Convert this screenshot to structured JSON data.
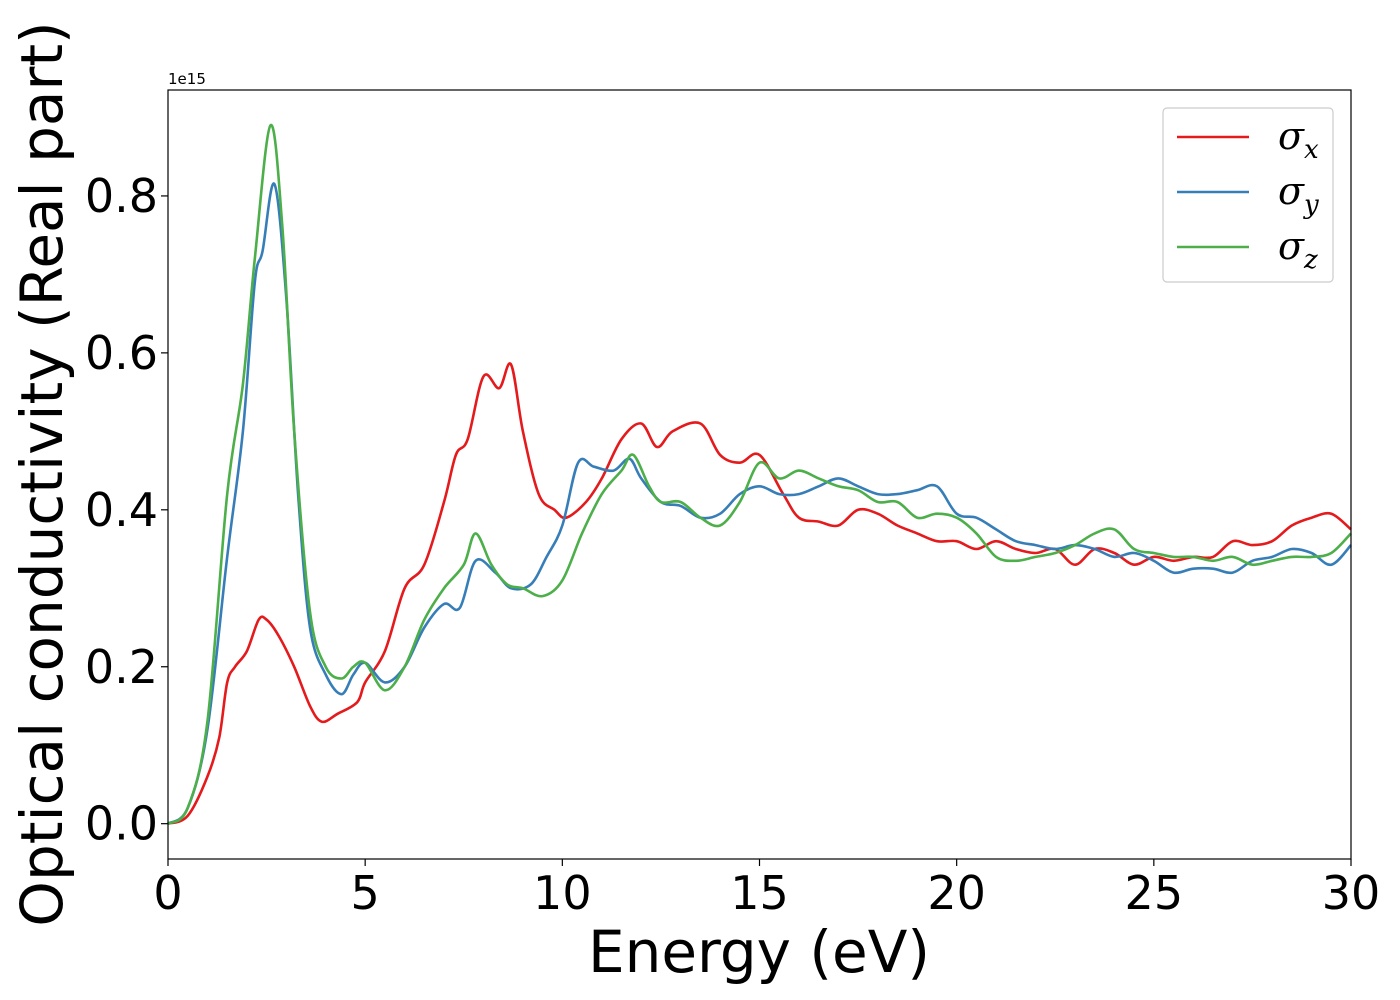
{
  "chart_data": {
    "type": "line",
    "xlabel": "Energy (eV)",
    "ylabel": "Optical conductivity (Real part)",
    "y_offset_text": "1e15",
    "xlim": [
      0,
      30
    ],
    "ylim": [
      -0.045,
      0.935
    ],
    "x_ticks": [
      0,
      5,
      10,
      15,
      20,
      25,
      30
    ],
    "x_tick_labels": [
      "0",
      "5",
      "10",
      "15",
      "20",
      "25",
      "30"
    ],
    "y_ticks": [
      0.0,
      0.2,
      0.4,
      0.6,
      0.8
    ],
    "y_tick_labels": [
      "0.0",
      "0.2",
      "0.4",
      "0.6",
      "0.8"
    ],
    "grid": false,
    "legend_position": "top-right",
    "series": [
      {
        "name": "σx",
        "legend_symbol": "σ",
        "legend_subscript": "x",
        "color": "#e41a1c",
        "points": [
          [
            0,
            0
          ],
          [
            0.5,
            0.01
          ],
          [
            1.0,
            0.06
          ],
          [
            1.3,
            0.11
          ],
          [
            1.5,
            0.18
          ],
          [
            1.7,
            0.2
          ],
          [
            2.0,
            0.22
          ],
          [
            2.3,
            0.26
          ],
          [
            2.5,
            0.26
          ],
          [
            2.8,
            0.24
          ],
          [
            3.2,
            0.2
          ],
          [
            3.6,
            0.15
          ],
          [
            3.9,
            0.13
          ],
          [
            4.3,
            0.14
          ],
          [
            4.8,
            0.155
          ],
          [
            5.0,
            0.18
          ],
          [
            5.5,
            0.22
          ],
          [
            6.0,
            0.3
          ],
          [
            6.5,
            0.33
          ],
          [
            7.0,
            0.41
          ],
          [
            7.3,
            0.47
          ],
          [
            7.6,
            0.49
          ],
          [
            8.0,
            0.57
          ],
          [
            8.4,
            0.555
          ],
          [
            8.7,
            0.585
          ],
          [
            9.0,
            0.5
          ],
          [
            9.4,
            0.42
          ],
          [
            9.8,
            0.4
          ],
          [
            10.1,
            0.39
          ],
          [
            10.6,
            0.41
          ],
          [
            11.0,
            0.44
          ],
          [
            11.5,
            0.49
          ],
          [
            12.0,
            0.51
          ],
          [
            12.4,
            0.48
          ],
          [
            12.8,
            0.5
          ],
          [
            13.5,
            0.51
          ],
          [
            14.0,
            0.47
          ],
          [
            14.5,
            0.46
          ],
          [
            15.0,
            0.47
          ],
          [
            15.6,
            0.42
          ],
          [
            16.0,
            0.39
          ],
          [
            16.5,
            0.385
          ],
          [
            17.0,
            0.38
          ],
          [
            17.5,
            0.4
          ],
          [
            18.0,
            0.395
          ],
          [
            18.5,
            0.38
          ],
          [
            19.0,
            0.37
          ],
          [
            19.5,
            0.36
          ],
          [
            20.0,
            0.36
          ],
          [
            20.5,
            0.35
          ],
          [
            21.0,
            0.36
          ],
          [
            21.5,
            0.35
          ],
          [
            22.0,
            0.345
          ],
          [
            22.5,
            0.35
          ],
          [
            23.0,
            0.33
          ],
          [
            23.5,
            0.35
          ],
          [
            24.0,
            0.345
          ],
          [
            24.5,
            0.33
          ],
          [
            25.0,
            0.34
          ],
          [
            25.5,
            0.335
          ],
          [
            26.0,
            0.34
          ],
          [
            26.5,
            0.34
          ],
          [
            27.0,
            0.36
          ],
          [
            27.5,
            0.355
          ],
          [
            28.0,
            0.36
          ],
          [
            28.5,
            0.38
          ],
          [
            29.0,
            0.39
          ],
          [
            29.5,
            0.395
          ],
          [
            30.0,
            0.375
          ]
        ]
      },
      {
        "name": "σy",
        "legend_symbol": "σ",
        "legend_subscript": "y",
        "color": "#377eb8",
        "points": [
          [
            0,
            0
          ],
          [
            0.5,
            0.02
          ],
          [
            1.0,
            0.12
          ],
          [
            1.5,
            0.34
          ],
          [
            1.9,
            0.5
          ],
          [
            2.2,
            0.69
          ],
          [
            2.4,
            0.73
          ],
          [
            2.7,
            0.815
          ],
          [
            3.0,
            0.67
          ],
          [
            3.3,
            0.42
          ],
          [
            3.6,
            0.25
          ],
          [
            4.0,
            0.19
          ],
          [
            4.4,
            0.165
          ],
          [
            4.7,
            0.19
          ],
          [
            5.0,
            0.205
          ],
          [
            5.5,
            0.18
          ],
          [
            6.0,
            0.2
          ],
          [
            6.5,
            0.25
          ],
          [
            7.0,
            0.28
          ],
          [
            7.4,
            0.275
          ],
          [
            7.8,
            0.335
          ],
          [
            8.3,
            0.32
          ],
          [
            8.7,
            0.3
          ],
          [
            9.2,
            0.305
          ],
          [
            9.6,
            0.34
          ],
          [
            10.0,
            0.38
          ],
          [
            10.4,
            0.46
          ],
          [
            10.8,
            0.455
          ],
          [
            11.3,
            0.45
          ],
          [
            11.7,
            0.465
          ],
          [
            12.0,
            0.44
          ],
          [
            12.5,
            0.41
          ],
          [
            13.0,
            0.405
          ],
          [
            13.5,
            0.39
          ],
          [
            14.0,
            0.395
          ],
          [
            14.5,
            0.42
          ],
          [
            15.0,
            0.43
          ],
          [
            15.5,
            0.42
          ],
          [
            16.0,
            0.42
          ],
          [
            16.5,
            0.43
          ],
          [
            17.0,
            0.44
          ],
          [
            17.5,
            0.43
          ],
          [
            18.0,
            0.42
          ],
          [
            18.5,
            0.42
          ],
          [
            19.0,
            0.425
          ],
          [
            19.5,
            0.43
          ],
          [
            20.0,
            0.395
          ],
          [
            20.5,
            0.39
          ],
          [
            21.0,
            0.375
          ],
          [
            21.5,
            0.36
          ],
          [
            22.0,
            0.355
          ],
          [
            22.5,
            0.35
          ],
          [
            23.0,
            0.355
          ],
          [
            23.5,
            0.35
          ],
          [
            24.0,
            0.34
          ],
          [
            24.5,
            0.345
          ],
          [
            25.0,
            0.335
          ],
          [
            25.5,
            0.32
          ],
          [
            26.0,
            0.325
          ],
          [
            26.5,
            0.325
          ],
          [
            27.0,
            0.32
          ],
          [
            27.5,
            0.335
          ],
          [
            28.0,
            0.34
          ],
          [
            28.5,
            0.35
          ],
          [
            29.0,
            0.345
          ],
          [
            29.5,
            0.33
          ],
          [
            30.0,
            0.355
          ]
        ]
      },
      {
        "name": "σz",
        "legend_symbol": "σ",
        "legend_subscript": "z",
        "color": "#4daf4a",
        "points": [
          [
            0,
            0
          ],
          [
            0.5,
            0.02
          ],
          [
            1.0,
            0.13
          ],
          [
            1.5,
            0.42
          ],
          [
            1.9,
            0.56
          ],
          [
            2.2,
            0.72
          ],
          [
            2.6,
            0.89
          ],
          [
            2.9,
            0.76
          ],
          [
            3.2,
            0.5
          ],
          [
            3.6,
            0.27
          ],
          [
            4.0,
            0.2
          ],
          [
            4.4,
            0.185
          ],
          [
            4.7,
            0.2
          ],
          [
            5.0,
            0.205
          ],
          [
            5.5,
            0.17
          ],
          [
            6.0,
            0.2
          ],
          [
            6.5,
            0.26
          ],
          [
            7.0,
            0.3
          ],
          [
            7.5,
            0.33
          ],
          [
            7.8,
            0.37
          ],
          [
            8.2,
            0.33
          ],
          [
            8.6,
            0.305
          ],
          [
            9.0,
            0.3
          ],
          [
            9.5,
            0.29
          ],
          [
            10.0,
            0.31
          ],
          [
            10.5,
            0.37
          ],
          [
            11.0,
            0.42
          ],
          [
            11.5,
            0.45
          ],
          [
            11.8,
            0.47
          ],
          [
            12.2,
            0.43
          ],
          [
            12.5,
            0.41
          ],
          [
            13.0,
            0.41
          ],
          [
            13.5,
            0.39
          ],
          [
            14.0,
            0.38
          ],
          [
            14.5,
            0.41
          ],
          [
            15.0,
            0.46
          ],
          [
            15.5,
            0.44
          ],
          [
            16.0,
            0.45
          ],
          [
            16.5,
            0.44
          ],
          [
            17.0,
            0.43
          ],
          [
            17.5,
            0.425
          ],
          [
            18.0,
            0.41
          ],
          [
            18.5,
            0.41
          ],
          [
            19.0,
            0.39
          ],
          [
            19.5,
            0.395
          ],
          [
            20.0,
            0.39
          ],
          [
            20.5,
            0.37
          ],
          [
            21.0,
            0.34
          ],
          [
            21.5,
            0.335
          ],
          [
            22.0,
            0.34
          ],
          [
            22.5,
            0.345
          ],
          [
            23.0,
            0.355
          ],
          [
            23.5,
            0.37
          ],
          [
            24.0,
            0.375
          ],
          [
            24.5,
            0.35
          ],
          [
            25.0,
            0.345
          ],
          [
            25.5,
            0.34
          ],
          [
            26.0,
            0.34
          ],
          [
            26.5,
            0.335
          ],
          [
            27.0,
            0.34
          ],
          [
            27.5,
            0.33
          ],
          [
            28.0,
            0.335
          ],
          [
            28.5,
            0.34
          ],
          [
            29.0,
            0.34
          ],
          [
            29.5,
            0.345
          ],
          [
            30.0,
            0.37
          ]
        ]
      }
    ]
  }
}
